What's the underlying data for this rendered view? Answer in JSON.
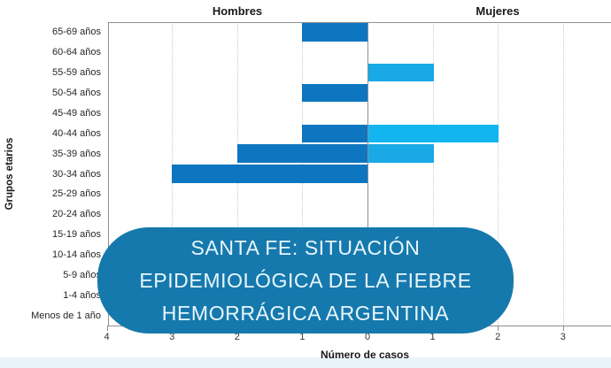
{
  "page": {
    "background": "#ffffff",
    "bottom_band_color": "#e9f4fa"
  },
  "overlay": {
    "lines": [
      "SANTA FE: SITUACIÓN",
      "EPIDEMIOLÓGICA DE LA FIEBRE",
      "HEMORRÁGICA ARGENTINA"
    ],
    "background": "#1679AD",
    "text_color": "#E8F6FC"
  },
  "chart_data": {
    "type": "bar",
    "layout": "population-pyramid",
    "orientation": "horizontal",
    "title_left": "Hombres",
    "title_right": "Mujeres",
    "xlabel": "Número de casos",
    "ylabel": "Grupos etarios",
    "categories": [
      "65-69 años",
      "60-64 años",
      "55-59 años",
      "50-54 años",
      "45-49 años",
      "40-44 años",
      "35-39 años",
      "30-34 años",
      "25-29 años",
      "20-24 años",
      "15-19 años",
      "10-14 años",
      "5-9 años",
      "1-4 años",
      "Menos de 1 año"
    ],
    "series": [
      {
        "name": "Hombres",
        "side": "left",
        "color": "#0E76C0",
        "values": [
          1,
          0,
          0,
          1,
          0,
          1,
          2,
          3,
          0,
          0,
          0,
          0,
          0,
          0,
          0
        ]
      },
      {
        "name": "Mujeres",
        "side": "right",
        "color": "#18A9E6",
        "color_overrides": {
          "40-44 años": "#12B5EF"
        },
        "values": [
          0,
          0,
          1,
          0,
          0,
          2,
          1,
          0,
          0,
          0,
          0,
          0,
          0,
          0,
          0
        ]
      }
    ],
    "x_ticks": {
      "left": [
        4,
        3,
        2,
        1
      ],
      "center": 0,
      "right": [
        1,
        2,
        3
      ]
    },
    "x_max_per_side": 4,
    "grid": "dotted-vertical",
    "axis_color": "#8f8f8f",
    "grid_color": "#c8c8c8",
    "tick_text_color": "#333333",
    "label_text_color": "#262626"
  }
}
